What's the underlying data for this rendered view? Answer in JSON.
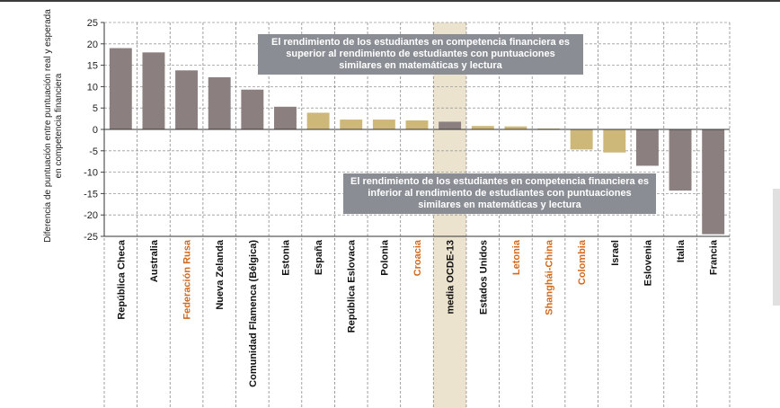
{
  "chart_data": {
    "type": "bar",
    "ylabel": "Diferencia de puntuación entre puntuación real y esperada en competencia financiera",
    "ylim": [
      -25,
      25
    ],
    "yticks": [
      25,
      20,
      15,
      10,
      5,
      0,
      -5,
      -10,
      -15,
      -20,
      -25
    ],
    "grid": true,
    "categories": [
      "República Checa",
      "Australia",
      "Federación Rusa",
      "Nueva Zelanda",
      "Comunidad Flamenca (Bélgica)",
      "Estonia",
      "España",
      "República Eslovaca",
      "Polonia",
      "Croacia",
      "media OCDE-13",
      "Estados Unidos",
      "Letonia",
      "Shanghái-China",
      "Colombia",
      "Israel",
      "Eslovenia",
      "Italia",
      "Francia"
    ],
    "values": [
      19,
      18,
      13.8,
      12.2,
      9.3,
      5.3,
      3.9,
      2.3,
      2.3,
      2.1,
      1.8,
      0.8,
      0.7,
      0.2,
      -4.7,
      -5.4,
      -8.5,
      -14.3,
      -24.5
    ],
    "significant": [
      true,
      true,
      true,
      true,
      true,
      true,
      false,
      false,
      false,
      false,
      true,
      false,
      false,
      false,
      false,
      false,
      true,
      true,
      true
    ],
    "highlighted_label": [
      false,
      false,
      true,
      false,
      false,
      false,
      false,
      false,
      false,
      true,
      false,
      false,
      true,
      true,
      true,
      false,
      false,
      false,
      false
    ],
    "highlighted_column": "media OCDE-13",
    "annotations": [
      "El rendimiento de los estudiantes en competencia financiera es superior al rendimiento de estudiantes con puntuaciones similares en matemáticas y lectura",
      "El rendimiento de los estudiantes en competencia financiera es inferior al rendimiento de estudiantes con puntuaciones similares en matemáticas y lectura"
    ],
    "colors": {
      "significant": "#8b7f7f",
      "not_significant": "#cdb87a",
      "highlight_label": "#d2691e",
      "label": "#111111",
      "highlight_band": "#ece3cf",
      "annotation_box": "#8a8e94"
    }
  }
}
